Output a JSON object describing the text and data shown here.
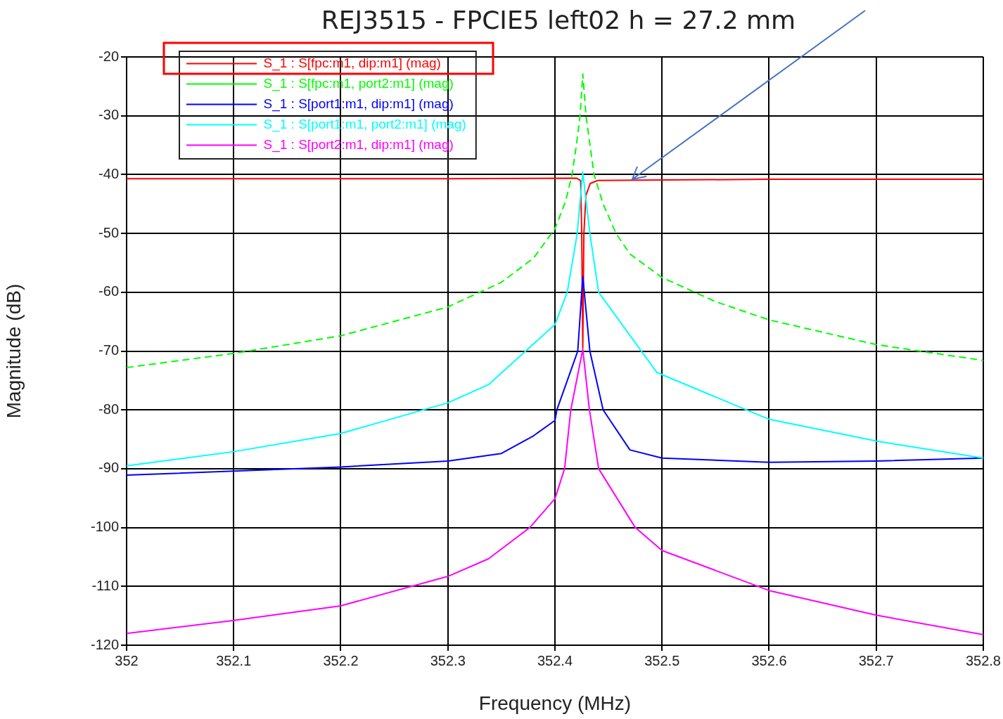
{
  "chart_data": {
    "type": "line",
    "title": "REJ3515 - FPCIE5 left02 h = 27.2 mm",
    "xlabel": "Frequency (MHz)",
    "ylabel": "Magnitude (dB)",
    "xlim": [
      352,
      352.8
    ],
    "xticks": [
      352,
      352.1,
      352.2,
      352.3,
      352.4,
      352.5,
      352.6,
      352.7,
      352.8
    ],
    "ylim": [
      -120,
      -20
    ],
    "yticks": [
      -120,
      -110,
      -100,
      -90,
      -80,
      -70,
      -60,
      -50,
      -40,
      -30,
      -20
    ],
    "grid": true,
    "legend": "top left",
    "marker": "none",
    "series": [
      {
        "name": "S_1 : S[fpc:m1, dip:m1] (mag)",
        "color": "#ff0000",
        "x": [
          352,
          352.3,
          352.42,
          352.424,
          352.425,
          352.426,
          352.427,
          352.429,
          352.433,
          352.44,
          352.6,
          352.8
        ],
        "values": [
          -40.7,
          -40.7,
          -40.6,
          -41,
          -50,
          -69.5,
          -50,
          -43.5,
          -41.5,
          -41,
          -40.8,
          -40.8
        ]
      },
      {
        "name": "S_1 : S[fpc:m1, port2:m1] (mag)",
        "color": "#00ff00",
        "line_style": "dashed",
        "x": [
          352,
          352.1,
          352.2,
          352.3,
          352.35,
          352.38,
          352.4,
          352.41,
          352.416,
          352.42,
          352.4235,
          352.426,
          352.429,
          352.4365,
          352.445,
          352.457,
          352.47,
          352.5,
          352.55,
          352.6,
          352.7,
          352.8
        ],
        "values": [
          -72.8,
          -70.4,
          -67.4,
          -62.5,
          -58.3,
          -54.2,
          -49.2,
          -44.5,
          -40,
          -35,
          -30,
          -22.9,
          -30,
          -40,
          -45,
          -50,
          -53.5,
          -57.5,
          -61.6,
          -64.7,
          -68.9,
          -71.6
        ]
      },
      {
        "name": "S_1 : S[port1:m1, dip:m1] (mag)",
        "color": "#0000ff",
        "x": [
          352,
          352.1,
          352.2,
          352.3,
          352.35,
          352.38,
          352.4,
          352.4018,
          352.4213,
          352.426,
          352.4326,
          352.445,
          352.47,
          352.5,
          352.6,
          352.7,
          352.8
        ],
        "values": [
          -91.1,
          -90.4,
          -89.7,
          -88.7,
          -87.4,
          -84.4,
          -81.8,
          -80,
          -70,
          -57.3,
          -70,
          -80,
          -86.8,
          -88.2,
          -88.9,
          -88.7,
          -88.2
        ]
      },
      {
        "name": "S_1 : S[port1:m1, port2:m1] (mag)",
        "color": "#00ffff",
        "x": [
          352,
          352.1,
          352.2,
          352.3,
          352.338,
          352.4,
          352.4115,
          352.4208,
          352.426,
          352.4326,
          352.4408,
          352.495,
          352.5,
          352.6,
          352.7,
          352.8
        ],
        "values": [
          -89.5,
          -87.1,
          -84,
          -78.8,
          -75.7,
          -65.5,
          -60,
          -50,
          -39.6,
          -50,
          -60,
          -73.6,
          -74,
          -81.6,
          -85.3,
          -88.2
        ]
      },
      {
        "name": "S_1 : S[port2:m1, dip:m1] (mag)",
        "color": "#ff00ff",
        "x": [
          352,
          352.1,
          352.2,
          352.3,
          352.338,
          352.3765,
          352.4,
          352.409,
          352.4148,
          352.426,
          352.4322,
          352.4408,
          352.475,
          352.5,
          352.6,
          352.7,
          352.8
        ],
        "values": [
          -118,
          -115.8,
          -113.3,
          -108.3,
          -105.3,
          -100,
          -95.1,
          -90,
          -80,
          -69.7,
          -80,
          -90,
          -100,
          -103.9,
          -110.7,
          -114.9,
          -118.2
        ]
      }
    ]
  }
}
